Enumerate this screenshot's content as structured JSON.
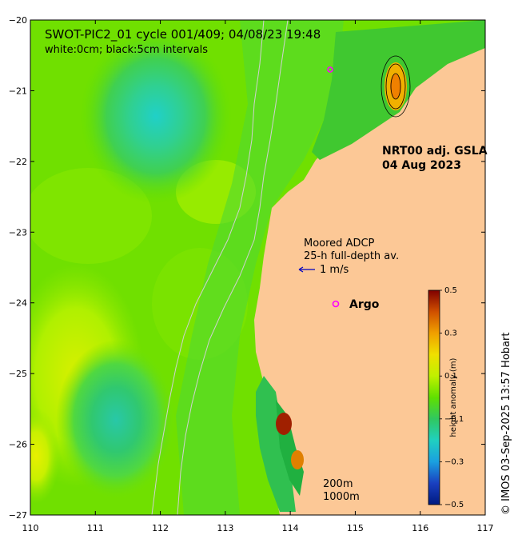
{
  "title_line1": "SWOT-PIC2_01 cycle 001/409; 04/08/23 19:48",
  "title_line2": "white:0cm; black:5cm intervals",
  "product_line1": "NRT00 adj. GSLA",
  "product_line2": "04 Aug 2023",
  "adcp_line1": "Moored ADCP",
  "adcp_line2": "25-h full-depth av.",
  "adcp_scale": "1 m/s",
  "argo_label": "Argo",
  "isobath_1": "200m",
  "isobath_2": "1000m",
  "credit": "© IMOS 03-Sep-2025 13:57 Hobart",
  "colorbar": {
    "title": "height anomaly (m)",
    "ticks": [
      "0.5",
      "0.3",
      "0.1",
      "−0.1",
      "−0.3",
      "−0.5"
    ],
    "tick_values": [
      0.5,
      0.3,
      0.1,
      -0.1,
      -0.3,
      -0.5
    ],
    "range": [
      -0.5,
      0.5
    ],
    "colors": [
      "#001a80",
      "#1a40c0",
      "#1aa0e0",
      "#20d0c0",
      "#30c860",
      "#60e000",
      "#c0f000",
      "#f0e000",
      "#f0a000",
      "#d05000",
      "#800000"
    ]
  },
  "x_ticks": [
    "110",
    "111",
    "112",
    "113",
    "114",
    "115",
    "116",
    "117"
  ],
  "x_values": [
    110,
    111,
    112,
    113,
    114,
    115,
    116,
    117
  ],
  "y_ticks": [
    "−20",
    "−21",
    "−22",
    "−23",
    "−24",
    "−25",
    "−26",
    "−27"
  ],
  "y_values": [
    -20,
    -21,
    -22,
    -23,
    -24,
    -25,
    -26,
    -27
  ],
  "x_range": [
    110,
    117
  ],
  "y_range": [
    -27,
    -20
  ],
  "land_color": "#fcc896",
  "argo_color": "#ff00ff",
  "adcp_color": "#0000c0"
}
